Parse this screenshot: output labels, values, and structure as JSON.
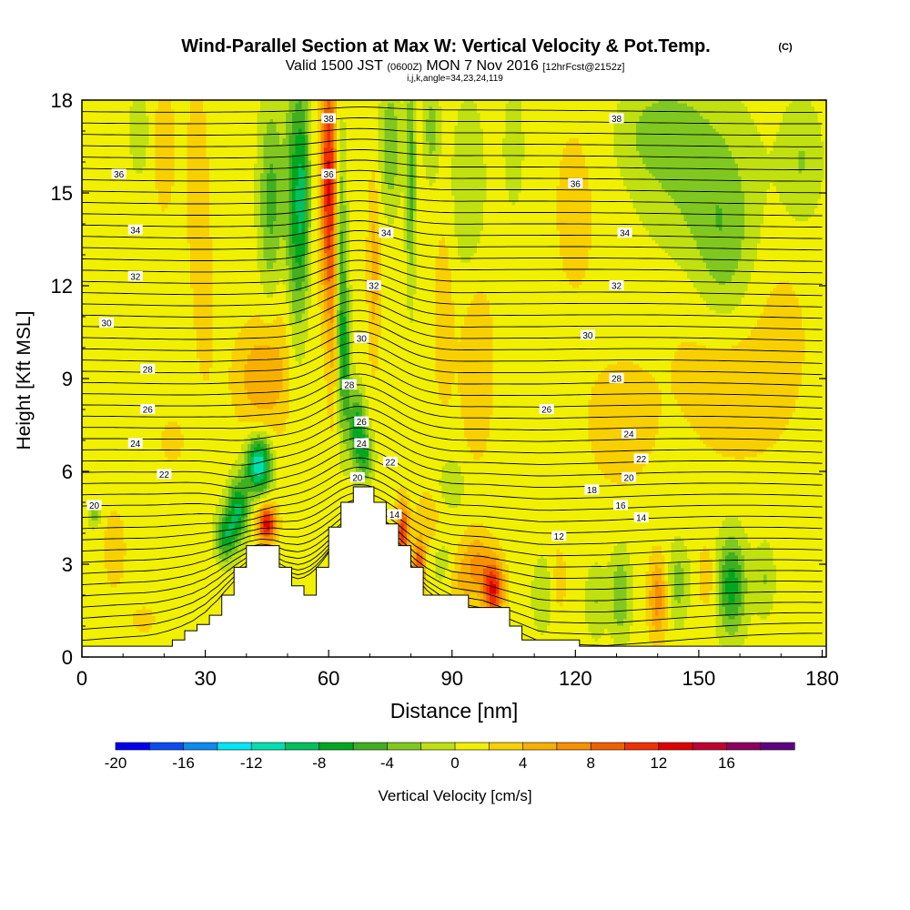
{
  "chart_data": {
    "type": "heatmap",
    "title": "Wind-Parallel Section at Max W: Vertical Velocity & Pot.Temp.",
    "copyright": "(C)",
    "subtitle_valid": "Valid 1500 JST",
    "subtitle_utc": "(0600Z)",
    "subtitle_date": "MON 7 Nov 2016",
    "subtitle_fcst": "[12hrFcst@2152z]",
    "subtitle_ijk": "i,j,k,angle=34,23,24,119",
    "xlabel": "Distance [nm]",
    "ylabel": "Height [Kft MSL]",
    "xlim": [
      0,
      181
    ],
    "ylim": [
      0,
      18
    ],
    "xticks": [
      "0",
      "30",
      "60",
      "90",
      "120",
      "150",
      "180"
    ],
    "yticks": [
      "0",
      "3",
      "6",
      "9",
      "12",
      "15",
      "18"
    ],
    "colorbar": {
      "label": "Vertical Velocity [cm/s]",
      "ticks": [
        "-20",
        "-16",
        "-12",
        "-8",
        "-4",
        "0",
        "4",
        "8",
        "12",
        "16"
      ],
      "levels": [
        -20,
        -18,
        -16,
        -14,
        -12,
        -10,
        -8,
        -6,
        -4,
        -2,
        0,
        2,
        4,
        6,
        8,
        10,
        12,
        14,
        16,
        18
      ],
      "colors": [
        "#0000ee",
        "#0a4cf0",
        "#0a8cf0",
        "#00e6f8",
        "#00e0b0",
        "#00c060",
        "#00a820",
        "#40b020",
        "#80c820",
        "#c0e010",
        "#f0f000",
        "#f8d000",
        "#f8b000",
        "#f89000",
        "#f06000",
        "#f03000",
        "#e00000",
        "#c00030",
        "#900060",
        "#600080"
      ]
    },
    "terrain": [
      [
        0,
        0.35
      ],
      [
        22,
        0.35
      ],
      [
        22,
        0.55
      ],
      [
        25,
        0.55
      ],
      [
        25,
        0.85
      ],
      [
        28,
        0.85
      ],
      [
        28,
        1.05
      ],
      [
        31,
        1.05
      ],
      [
        31,
        1.35
      ],
      [
        34,
        1.35
      ],
      [
        34,
        2.0
      ],
      [
        37,
        2.0
      ],
      [
        37,
        2.9
      ],
      [
        40,
        2.9
      ],
      [
        40,
        3.6
      ],
      [
        48,
        3.6
      ],
      [
        48,
        2.9
      ],
      [
        51,
        2.9
      ],
      [
        51,
        2.3
      ],
      [
        54,
        2.3
      ],
      [
        54,
        2.0
      ],
      [
        57,
        2.0
      ],
      [
        57,
        2.9
      ],
      [
        60,
        2.9
      ],
      [
        60,
        4.2
      ],
      [
        63,
        4.2
      ],
      [
        63,
        5.0
      ],
      [
        66,
        5.0
      ],
      [
        66,
        5.5
      ],
      [
        71,
        5.5
      ],
      [
        71,
        5.0
      ],
      [
        74,
        5.0
      ],
      [
        74,
        4.3
      ],
      [
        77,
        4.3
      ],
      [
        77,
        3.6
      ],
      [
        80,
        3.6
      ],
      [
        80,
        2.9
      ],
      [
        83,
        2.9
      ],
      [
        83,
        2.0
      ],
      [
        94,
        2.0
      ],
      [
        94,
        1.6
      ],
      [
        104,
        1.6
      ],
      [
        104,
        1.0
      ],
      [
        107,
        1.0
      ],
      [
        107,
        0.55
      ],
      [
        121,
        0.55
      ],
      [
        121,
        0.35
      ],
      [
        181,
        0.35
      ]
    ],
    "theta_contours": [
      {
        "label": "12",
        "lx": 116,
        "ly": 3.9
      },
      {
        "label": "14",
        "lx": 136,
        "ly": 4.5
      },
      {
        "label": "16",
        "lx": 131,
        "ly": 4.9
      },
      {
        "label": "18",
        "lx": 124,
        "ly": 5.4
      },
      {
        "label": "20",
        "lx": 133,
        "ly": 5.8
      },
      {
        "label": "22",
        "lx": 136,
        "ly": 6.4
      },
      {
        "label": "24",
        "lx": 133,
        "ly": 7.2
      },
      {
        "label": "26",
        "lx": 113,
        "ly": 8.0
      },
      {
        "label": "28",
        "lx": 130,
        "ly": 9.0
      },
      {
        "label": "30",
        "lx": 123,
        "ly": 10.4
      },
      {
        "label": "32",
        "lx": 130,
        "ly": 12.0
      },
      {
        "label": "34",
        "lx": 132,
        "ly": 13.7
      },
      {
        "label": "36",
        "lx": 120,
        "ly": 15.3
      },
      {
        "label": "38",
        "lx": 130,
        "ly": 17.4
      }
    ],
    "contour_labels": [
      {
        "label": "20",
        "x": 3,
        "y": 4.9
      },
      {
        "label": "22",
        "x": 20,
        "y": 5.9
      },
      {
        "label": "24",
        "x": 13,
        "y": 6.9
      },
      {
        "label": "26",
        "x": 16,
        "y": 8.0
      },
      {
        "label": "28",
        "x": 16,
        "y": 9.3
      },
      {
        "label": "30",
        "x": 6,
        "y": 10.8
      },
      {
        "label": "32",
        "x": 13,
        "y": 12.3
      },
      {
        "label": "34",
        "x": 13,
        "y": 13.8
      },
      {
        "label": "36",
        "x": 9,
        "y": 15.6
      },
      {
        "label": "38",
        "x": 60,
        "y": 17.4
      },
      {
        "label": "36",
        "x": 60,
        "y": 15.6
      },
      {
        "label": "34",
        "x": 74,
        "y": 13.7
      },
      {
        "label": "32",
        "x": 71,
        "y": 12.0
      },
      {
        "label": "30",
        "x": 68,
        "y": 10.3
      },
      {
        "label": "28",
        "x": 65,
        "y": 8.8
      },
      {
        "label": "26",
        "x": 68,
        "y": 7.6
      },
      {
        "label": "24",
        "x": 68,
        "y": 6.9
      },
      {
        "label": "22",
        "x": 75,
        "y": 6.3
      },
      {
        "label": "20",
        "x": 67,
        "y": 5.8
      },
      {
        "label": "14",
        "x": 76,
        "y": 4.6
      }
    ],
    "velocity_features": [
      {
        "x": 43,
        "y": 6.2,
        "sx": 3,
        "sy": 0.9,
        "v": -13
      },
      {
        "x": 38,
        "y": 4.8,
        "sx": 2.5,
        "sy": 1.0,
        "v": -9
      },
      {
        "x": 35,
        "y": 3.9,
        "sx": 2.5,
        "sy": 0.8,
        "v": -8
      },
      {
        "x": 45,
        "y": 4.3,
        "sx": 2.2,
        "sy": 0.6,
        "v": 12
      },
      {
        "x": 43,
        "y": 9.0,
        "sx": 6,
        "sy": 1.6,
        "v": 4
      },
      {
        "x": 48,
        "y": 10.5,
        "sx": 5,
        "sy": 3.0,
        "v": 2.5
      },
      {
        "x": 46,
        "y": 14.5,
        "sx": 3,
        "sy": 3.5,
        "v": -6
      },
      {
        "x": 52,
        "y": 14.5,
        "sx": 2.5,
        "sy": 4.5,
        "v": -8
      },
      {
        "x": 54,
        "y": 15.0,
        "sx": 1.5,
        "sy": 3.0,
        "v": -5
      },
      {
        "x": 60,
        "y": 15.5,
        "sx": 2.0,
        "sy": 4.0,
        "v": 11
      },
      {
        "x": 61,
        "y": 11.0,
        "sx": 1.3,
        "sy": 3.5,
        "v": 3
      },
      {
        "x": 63,
        "y": 13.0,
        "sx": 1.3,
        "sy": 4.0,
        "v": -6
      },
      {
        "x": 64,
        "y": 9.5,
        "sx": 1.5,
        "sy": 2.5,
        "v": -6
      },
      {
        "x": 67,
        "y": 7.4,
        "sx": 2.0,
        "sy": 1.2,
        "v": -8
      },
      {
        "x": 69,
        "y": 6.5,
        "sx": 2.0,
        "sy": 0.8,
        "v": -6
      },
      {
        "x": 71,
        "y": 12.5,
        "sx": 1.5,
        "sy": 3.0,
        "v": 4
      },
      {
        "x": 75,
        "y": 16.5,
        "sx": 2.5,
        "sy": 2.0,
        "v": -5
      },
      {
        "x": 80,
        "y": 15.5,
        "sx": 1.2,
        "sy": 3.5,
        "v": -6
      },
      {
        "x": 85,
        "y": 17.0,
        "sx": 2.0,
        "sy": 1.5,
        "v": -4
      },
      {
        "x": 88,
        "y": 11.0,
        "sx": 2.5,
        "sy": 3.0,
        "v": 2.5
      },
      {
        "x": 94,
        "y": 15.0,
        "sx": 4,
        "sy": 3.0,
        "v": -3
      },
      {
        "x": 96,
        "y": 9.5,
        "sx": 4,
        "sy": 3.0,
        "v": 3
      },
      {
        "x": 78,
        "y": 4.0,
        "sx": 1.6,
        "sy": 1.0,
        "v": 10
      },
      {
        "x": 82,
        "y": 3.0,
        "sx": 1.4,
        "sy": 0.8,
        "v": 9
      },
      {
        "x": 84,
        "y": 4.5,
        "sx": 2.5,
        "sy": 0.8,
        "v": 3
      },
      {
        "x": 90,
        "y": 5.6,
        "sx": 3,
        "sy": 0.8,
        "v": -3
      },
      {
        "x": 88,
        "y": 3.0,
        "sx": 3,
        "sy": 0.8,
        "v": -2
      },
      {
        "x": 100,
        "y": 2.2,
        "sx": 2.5,
        "sy": 1.0,
        "v": 11
      },
      {
        "x": 96,
        "y": 3.0,
        "sx": 3,
        "sy": 1.0,
        "v": 5
      },
      {
        "x": 92,
        "y": 2.5,
        "sx": 3,
        "sy": 1.0,
        "v": 3
      },
      {
        "x": 112,
        "y": 2.0,
        "sx": 2.5,
        "sy": 1.2,
        "v": -3
      },
      {
        "x": 116,
        "y": 2.5,
        "sx": 2.0,
        "sy": 1.2,
        "v": 2
      },
      {
        "x": 125,
        "y": 1.8,
        "sx": 2.5,
        "sy": 1.2,
        "v": -3
      },
      {
        "x": 131,
        "y": 2.0,
        "sx": 2.5,
        "sy": 1.4,
        "v": -5
      },
      {
        "x": 140,
        "y": 1.9,
        "sx": 2.2,
        "sy": 1.3,
        "v": 6
      },
      {
        "x": 145,
        "y": 2.4,
        "sx": 2.5,
        "sy": 1.3,
        "v": -4
      },
      {
        "x": 152,
        "y": 2.6,
        "sx": 2.0,
        "sy": 1.0,
        "v": 3
      },
      {
        "x": 158,
        "y": 2.3,
        "sx": 3.5,
        "sy": 1.6,
        "v": -8
      },
      {
        "x": 166,
        "y": 2.5,
        "sx": 2.5,
        "sy": 1.2,
        "v": -3
      },
      {
        "x": 131,
        "y": 7.5,
        "sx": 8,
        "sy": 2.0,
        "v": 2.5
      },
      {
        "x": 160,
        "y": 8.3,
        "sx": 10,
        "sy": 2.0,
        "v": 2
      },
      {
        "x": 150,
        "y": 10.0,
        "sx": 12,
        "sy": 3.0,
        "v": 1.2
      },
      {
        "x": 170,
        "y": 10.5,
        "sx": 8,
        "sy": 3.0,
        "v": 1.5
      },
      {
        "x": 150,
        "y": 15.5,
        "sx": 14,
        "sy": 2.8,
        "v": -3.5
      },
      {
        "x": 156,
        "y": 13.0,
        "sx": 7,
        "sy": 2.5,
        "v": -3.5
      },
      {
        "x": 140,
        "y": 17.0,
        "sx": 10,
        "sy": 1.5,
        "v": -3
      },
      {
        "x": 175,
        "y": 16.0,
        "sx": 5,
        "sy": 2.0,
        "v": -3
      },
      {
        "x": 120,
        "y": 14.5,
        "sx": 7,
        "sy": 4.0,
        "v": 1.5
      },
      {
        "x": 105,
        "y": 16.5,
        "sx": 2.5,
        "sy": 2.0,
        "v": -2.5
      },
      {
        "x": 20,
        "y": 16.5,
        "sx": 3,
        "sy": 2.5,
        "v": 2
      },
      {
        "x": 14,
        "y": 17.0,
        "sx": 2.5,
        "sy": 1.5,
        "v": -2.5
      },
      {
        "x": 28,
        "y": 15.5,
        "sx": 3,
        "sy": 3.5,
        "v": 2
      },
      {
        "x": 30,
        "y": 11.0,
        "sx": 3,
        "sy": 3.0,
        "v": 1.5
      },
      {
        "x": 8,
        "y": 3.5,
        "sx": 3,
        "sy": 1.5,
        "v": 2
      },
      {
        "x": 3,
        "y": 4.6,
        "sx": 1.5,
        "sy": 0.4,
        "v": -4
      },
      {
        "x": 15,
        "y": 1.2,
        "sx": 4,
        "sy": 0.6,
        "v": 1.5
      },
      {
        "x": 22,
        "y": 7.0,
        "sx": 4,
        "sy": 1.0,
        "v": 1.5
      }
    ]
  }
}
